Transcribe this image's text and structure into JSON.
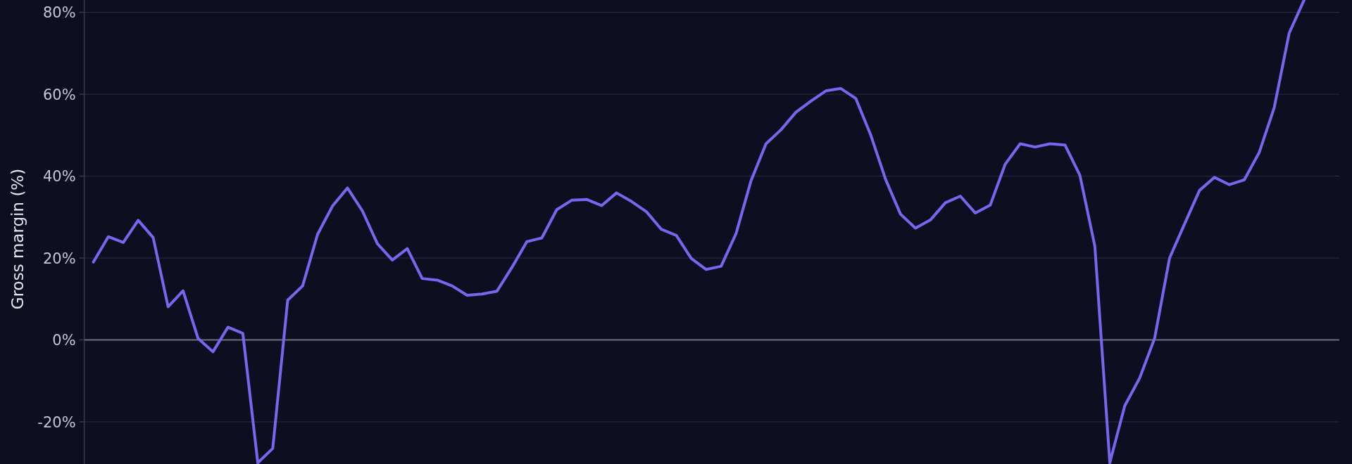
{
  "chart_data": {
    "type": "line",
    "ylabel": "Gross margin (%)",
    "categories": [
      null,
      null,
      null,
      null,
      null,
      null,
      null,
      null,
      null,
      null,
      null,
      null,
      null,
      null,
      null,
      null,
      null,
      null,
      null,
      null,
      null,
      null,
      null,
      null,
      null,
      null,
      null,
      null,
      null,
      null,
      null,
      null,
      null,
      null,
      null,
      null,
      null,
      null,
      null,
      null,
      null,
      null,
      null,
      null,
      null,
      null,
      null,
      null,
      null,
      null,
      null,
      null,
      null,
      null,
      null,
      null,
      null,
      null,
      null,
      null,
      null,
      null,
      null,
      null,
      null,
      null,
      null,
      null,
      null,
      null,
      null,
      null,
      null,
      null,
      null,
      null,
      null,
      null,
      null,
      null,
      null,
      null
    ],
    "values": [
      19.0,
      25.2,
      23.8,
      29.2,
      25.0,
      8.1,
      12.0,
      0.4,
      -2.9,
      3.1,
      1.6,
      -30,
      -26.5,
      9.7,
      13.2,
      25.8,
      32.7,
      37.1,
      31.5,
      23.5,
      19.5,
      22.3,
      15.0,
      14.6,
      13.2,
      10.9,
      11.2,
      11.9,
      17.7,
      24.0,
      24.9,
      31.8,
      34.1,
      34.3,
      32.8,
      35.9,
      33.8,
      31.3,
      27.0,
      25.5,
      19.9,
      17.2,
      18.0,
      26.0,
      38.9,
      47.9,
      51.3,
      55.6,
      58.3,
      60.8,
      61.4,
      59.0,
      50.1,
      39.2,
      30.7,
      27.3,
      29.3,
      33.5,
      35.1,
      31.0,
      32.9,
      42.9,
      47.9,
      47.1,
      47.9,
      47.6,
      40.2,
      22.9,
      -30,
      -16.1,
      -9.3,
      0.4,
      20.0,
      28.3,
      36.5,
      39.7,
      37.9,
      39.1,
      45.8,
      56.7,
      74.9,
      83
    ],
    "color": "#7766ee",
    "ylim": [
      -30.3,
      83
    ],
    "yticks": [
      {
        "value": -20,
        "label": "-20%"
      },
      {
        "value": 0,
        "label": "0%"
      },
      {
        "value": 20,
        "label": "20%"
      },
      {
        "value": 40,
        "label": "40%"
      },
      {
        "value": 60,
        "label": "60%"
      },
      {
        "value": 80,
        "label": "80%"
      }
    ],
    "grid": "y",
    "ref_lines": [
      {
        "axis": "y",
        "value": 0,
        "color": "#6c6e84"
      }
    ],
    "tick_labels": "y"
  }
}
